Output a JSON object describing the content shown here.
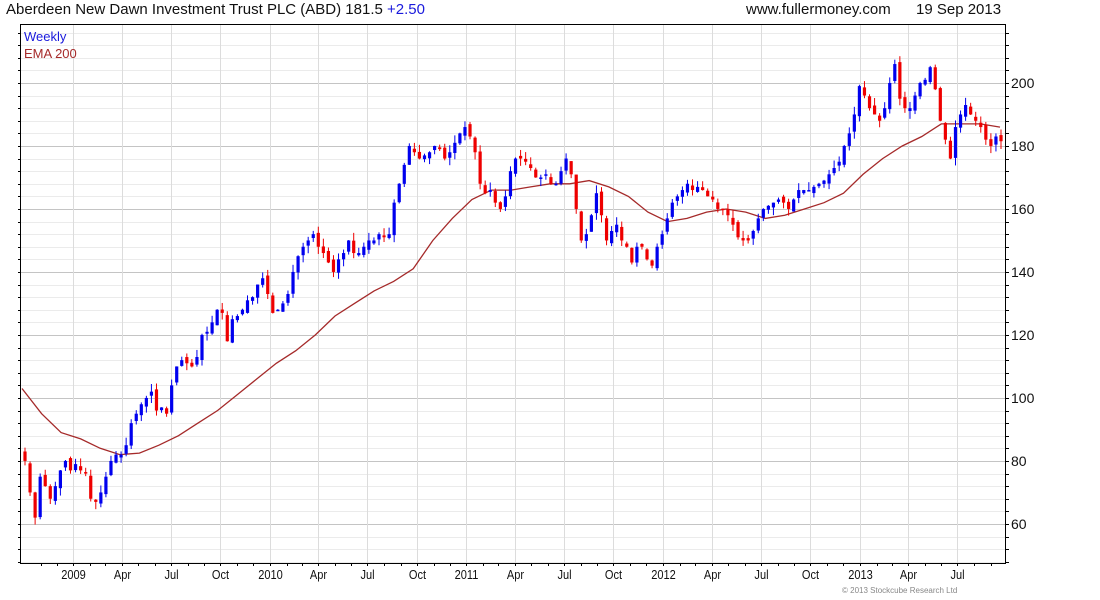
{
  "header": {
    "title": "Aberdeen New Dawn Investment Trust PLC (ABD) 181.5",
    "change": "+2.50",
    "site": "www.fullermoney.com",
    "date": "19 Sep 2013"
  },
  "legend": {
    "series1": "Weekly",
    "series2": "EMA 200"
  },
  "copyright": "© 2013 Stockcube Research Ltd",
  "colors": {
    "up": "#0000ee",
    "down": "#ee0000",
    "ema": "#a52a2a"
  },
  "chart_data": {
    "type": "candlestick",
    "title": "Aberdeen New Dawn Investment Trust PLC (ABD)",
    "start_date": "2008-10-03",
    "end_date": "2013-09-20",
    "ylim": [
      47.6,
      218.4
    ],
    "yticks": [
      60,
      80,
      100,
      120,
      140,
      160,
      180,
      200
    ],
    "xticks": [
      {
        "label": "2009",
        "date": "2009-01-01"
      },
      {
        "label": "Apr",
        "date": "2009-04-01"
      },
      {
        "label": "Jul",
        "date": "2009-07-01"
      },
      {
        "label": "Oct",
        "date": "2009-10-01"
      },
      {
        "label": "2010",
        "date": "2010-01-01"
      },
      {
        "label": "Apr",
        "date": "2010-04-01"
      },
      {
        "label": "Jul",
        "date": "2010-07-01"
      },
      {
        "label": "Oct",
        "date": "2010-10-01"
      },
      {
        "label": "2011",
        "date": "2011-01-01"
      },
      {
        "label": "Apr",
        "date": "2011-04-01"
      },
      {
        "label": "Jul",
        "date": "2011-07-01"
      },
      {
        "label": "Oct",
        "date": "2011-10-01"
      },
      {
        "label": "2012",
        "date": "2012-01-01"
      },
      {
        "label": "Apr",
        "date": "2012-04-01"
      },
      {
        "label": "Jul",
        "date": "2012-07-01"
      },
      {
        "label": "Oct",
        "date": "2012-10-01"
      },
      {
        "label": "2013",
        "date": "2013-01-01"
      },
      {
        "label": "Apr",
        "date": "2013-04-01"
      },
      {
        "label": "Jul",
        "date": "2013-07-01"
      }
    ],
    "closes": [
      80,
      70,
      62,
      75,
      72,
      68,
      72,
      77,
      80,
      77,
      79,
      77,
      76,
      68,
      67,
      70,
      75,
      80,
      82,
      82,
      85,
      92,
      95,
      98,
      100,
      102,
      96,
      97,
      95,
      104,
      110,
      112,
      111,
      110,
      113,
      120,
      121,
      124,
      128,
      127,
      118,
      125,
      126,
      128,
      131,
      132,
      136,
      138,
      133,
      127,
      128,
      130,
      133,
      140,
      145,
      148,
      150,
      152,
      148,
      146,
      143,
      140,
      144,
      146,
      150,
      146,
      146,
      148,
      150,
      150,
      152,
      151,
      152,
      162,
      168,
      174,
      180,
      178,
      176,
      177,
      178,
      180,
      179,
      176,
      178,
      181,
      184,
      186,
      183,
      178,
      168,
      165,
      166,
      162,
      160,
      164,
      172,
      176,
      176,
      175,
      173,
      170,
      170,
      171,
      168,
      168,
      172,
      176,
      171,
      160,
      150,
      152,
      158,
      165,
      158,
      150,
      153,
      155,
      150,
      148,
      143,
      148,
      148,
      144,
      142,
      148,
      152,
      157,
      162,
      164,
      166,
      168,
      166,
      167,
      166,
      164,
      163,
      160,
      160,
      158,
      155,
      151,
      150,
      150,
      153,
      157,
      160,
      161,
      162,
      163,
      162,
      160,
      163,
      166,
      166,
      166,
      167,
      168,
      169,
      171,
      173,
      175,
      180,
      184,
      190,
      199,
      196,
      192,
      190,
      188,
      192,
      200,
      206,
      195,
      192,
      192,
      196,
      200,
      201,
      205,
      198,
      188,
      182,
      176,
      186,
      190,
      193,
      190,
      188,
      186,
      182,
      180,
      183,
      181.5
    ],
    "ema200": [
      103,
      95,
      89,
      87,
      84,
      82,
      82.5,
      85,
      88,
      92,
      96,
      101,
      106,
      111,
      115,
      120,
      126,
      130,
      134,
      137,
      141,
      150,
      157,
      163,
      166,
      166,
      167,
      168,
      168,
      169,
      167,
      164,
      159,
      156,
      157,
      159,
      160,
      159,
      157,
      158,
      160,
      162,
      165,
      171,
      176,
      180,
      183,
      187,
      187,
      187,
      186
    ],
    "series": [
      {
        "name": "Weekly"
      },
      {
        "name": "EMA 200"
      }
    ]
  }
}
